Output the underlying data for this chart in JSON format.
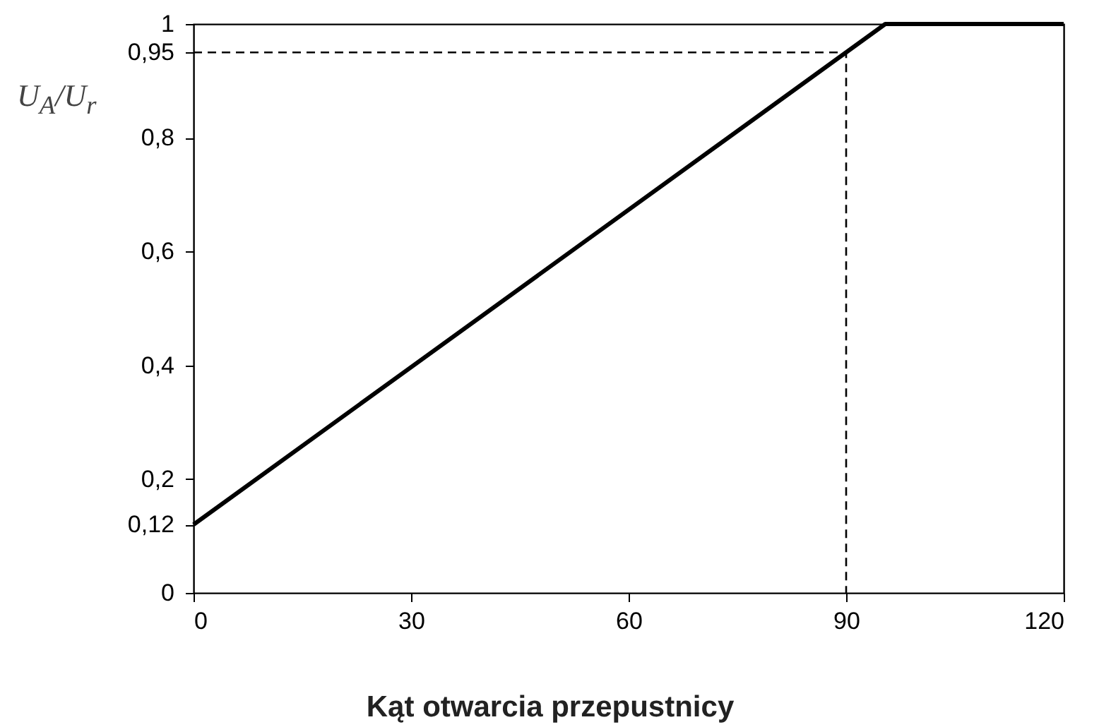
{
  "chart_data": {
    "type": "line",
    "xlabel": "Kąt otwarcia przepustnicy",
    "ylabel": "U$_{A}$/U$_{r}$",
    "xlim": [
      0,
      120
    ],
    "xticks": [
      0,
      30,
      60,
      90,
      120
    ],
    "ylim": [
      0,
      1
    ],
    "yticks": [
      "0",
      {
        "value": 0.12,
        "label": "0,12"
      },
      {
        "value": 0.2,
        "label": "0,2"
      },
      {
        "value": 0.4,
        "label": "0,4"
      },
      {
        "value": 0.6,
        "label": "0,6"
      },
      {
        "value": 0.8,
        "label": "0,8"
      },
      {
        "value": 0.95,
        "label": "0,95"
      },
      1
    ],
    "grid": false,
    "marker": "none",
    "series": [
      {
        "color": "#000000",
        "line_style": "solid",
        "x": [
          0,
          95.4,
          120
        ],
        "values": [
          0.12,
          1,
          1
        ]
      },
      {
        "color": "#000000",
        "line_style": "dashed",
        "x": [
          0,
          90,
          90
        ],
        "values": [
          0.95,
          0.95,
          0
        ]
      }
    ]
  }
}
